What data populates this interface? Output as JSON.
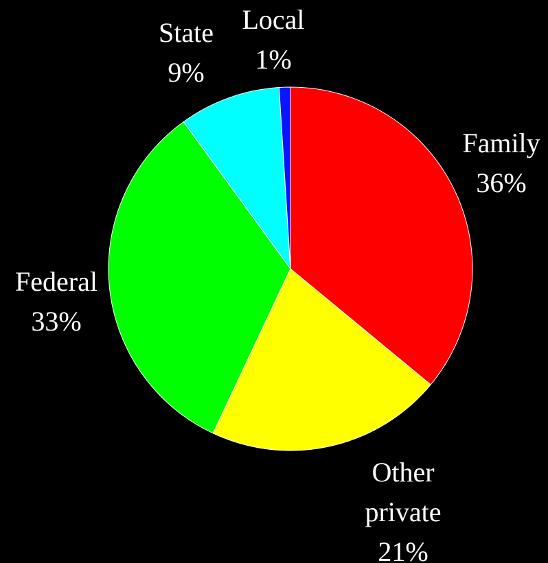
{
  "chart_data": {
    "type": "pie",
    "slices": [
      {
        "name": "Family",
        "value": 36,
        "value_label": "36%",
        "color": "#ff0000"
      },
      {
        "name": "Other private",
        "name_lines": [
          "Other",
          "private"
        ],
        "value": 21,
        "value_label": "21%",
        "color": "#ffff00"
      },
      {
        "name": "Federal",
        "value": 33,
        "value_label": "33%",
        "color": "#00ff00"
      },
      {
        "name": "State",
        "value": 9,
        "value_label": "9%",
        "color": "#00ffff"
      },
      {
        "name": "Local",
        "value": 1,
        "value_label": "1%",
        "color": "#0a14ff"
      }
    ],
    "start_angle_deg": 0,
    "direction": "clockwise",
    "slice_border_color": "#ffffff",
    "background_color": "#000000",
    "label_color": "#ffffff",
    "legend": "none"
  }
}
